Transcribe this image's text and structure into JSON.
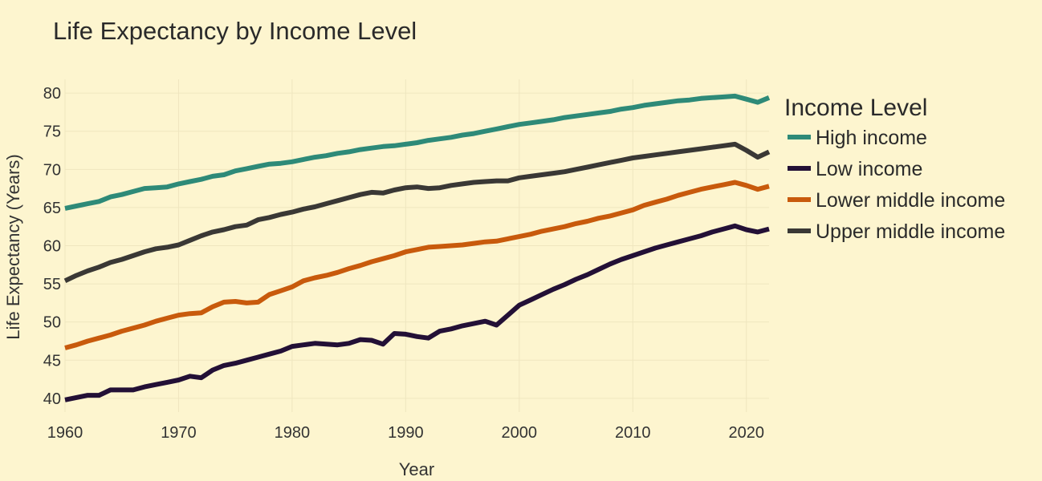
{
  "chart_data": {
    "type": "line",
    "title": "Life Expectancy by Income Level",
    "xlabel": "Year",
    "ylabel": "Life Expectancy (Years)",
    "xlim": [
      1960,
      2022
    ],
    "ylim": [
      38.2,
      81.8
    ],
    "xticks": [
      1960,
      1970,
      1980,
      1990,
      2000,
      2010,
      2020
    ],
    "yticks": [
      40,
      45,
      50,
      55,
      60,
      65,
      70,
      75,
      80
    ],
    "grid": true,
    "legend": {
      "title": "Income Level",
      "placement": "right"
    },
    "x": [
      1960,
      1961,
      1962,
      1963,
      1964,
      1965,
      1966,
      1967,
      1968,
      1969,
      1970,
      1971,
      1972,
      1973,
      1974,
      1975,
      1976,
      1977,
      1978,
      1979,
      1980,
      1981,
      1982,
      1983,
      1984,
      1985,
      1986,
      1987,
      1988,
      1989,
      1990,
      1991,
      1992,
      1993,
      1994,
      1995,
      1996,
      1997,
      1998,
      1999,
      2000,
      2001,
      2002,
      2003,
      2004,
      2005,
      2006,
      2007,
      2008,
      2009,
      2010,
      2011,
      2012,
      2013,
      2014,
      2015,
      2016,
      2017,
      2018,
      2019,
      2020,
      2021,
      2022
    ],
    "series": [
      {
        "name": "High income",
        "color": "#2e8a78",
        "values": [
          64.9,
          65.2,
          65.5,
          65.8,
          66.4,
          66.7,
          67.1,
          67.5,
          67.6,
          67.7,
          68.1,
          68.4,
          68.7,
          69.1,
          69.3,
          69.8,
          70.1,
          70.4,
          70.7,
          70.8,
          71.0,
          71.3,
          71.6,
          71.8,
          72.1,
          72.3,
          72.6,
          72.8,
          73.0,
          73.1,
          73.3,
          73.5,
          73.8,
          74.0,
          74.2,
          74.5,
          74.7,
          75.0,
          75.3,
          75.6,
          75.9,
          76.1,
          76.3,
          76.5,
          76.8,
          77.0,
          77.2,
          77.4,
          77.6,
          77.9,
          78.1,
          78.4,
          78.6,
          78.8,
          79.0,
          79.1,
          79.3,
          79.4,
          79.5,
          79.6,
          79.2,
          78.8,
          79.4
        ]
      },
      {
        "name": "Low income",
        "color": "#231036",
        "values": [
          39.8,
          40.1,
          40.4,
          40.4,
          41.1,
          41.1,
          41.1,
          41.5,
          41.8,
          42.1,
          42.4,
          42.9,
          42.7,
          43.7,
          44.3,
          44.6,
          45.0,
          45.4,
          45.8,
          46.2,
          46.8,
          47.0,
          47.2,
          47.1,
          47.0,
          47.2,
          47.7,
          47.6,
          47.1,
          48.5,
          48.4,
          48.1,
          47.9,
          48.8,
          49.1,
          49.5,
          49.8,
          50.1,
          49.6,
          50.9,
          52.2,
          52.9,
          53.6,
          54.3,
          54.9,
          55.6,
          56.2,
          56.9,
          57.6,
          58.2,
          58.7,
          59.2,
          59.7,
          60.1,
          60.5,
          60.9,
          61.3,
          61.8,
          62.2,
          62.6,
          62.1,
          61.8,
          62.2
        ]
      },
      {
        "name": "Lower middle income",
        "color": "#c85a0c",
        "values": [
          46.6,
          47.0,
          47.5,
          47.9,
          48.3,
          48.8,
          49.2,
          49.6,
          50.1,
          50.5,
          50.9,
          51.1,
          51.2,
          52.0,
          52.6,
          52.7,
          52.5,
          52.6,
          53.6,
          54.1,
          54.6,
          55.4,
          55.8,
          56.1,
          56.5,
          57.0,
          57.4,
          57.9,
          58.3,
          58.7,
          59.2,
          59.5,
          59.8,
          59.9,
          60.0,
          60.1,
          60.3,
          60.5,
          60.6,
          60.9,
          61.2,
          61.5,
          61.9,
          62.2,
          62.5,
          62.9,
          63.2,
          63.6,
          63.9,
          64.3,
          64.7,
          65.3,
          65.7,
          66.1,
          66.6,
          67.0,
          67.4,
          67.7,
          68.0,
          68.3,
          67.9,
          67.4,
          67.8
        ]
      },
      {
        "name": "Upper middle income",
        "color": "#3a3835",
        "values": [
          55.4,
          56.1,
          56.7,
          57.2,
          57.8,
          58.2,
          58.7,
          59.2,
          59.6,
          59.8,
          60.1,
          60.7,
          61.3,
          61.8,
          62.1,
          62.5,
          62.7,
          63.4,
          63.7,
          64.1,
          64.4,
          64.8,
          65.1,
          65.5,
          65.9,
          66.3,
          66.7,
          67.0,
          66.9,
          67.3,
          67.6,
          67.7,
          67.5,
          67.6,
          67.9,
          68.1,
          68.3,
          68.4,
          68.5,
          68.5,
          68.9,
          69.1,
          69.3,
          69.5,
          69.7,
          70.0,
          70.3,
          70.6,
          70.9,
          71.2,
          71.5,
          71.7,
          71.9,
          72.1,
          72.3,
          72.5,
          72.7,
          72.9,
          73.1,
          73.3,
          72.5,
          71.6,
          72.3
        ]
      }
    ]
  }
}
